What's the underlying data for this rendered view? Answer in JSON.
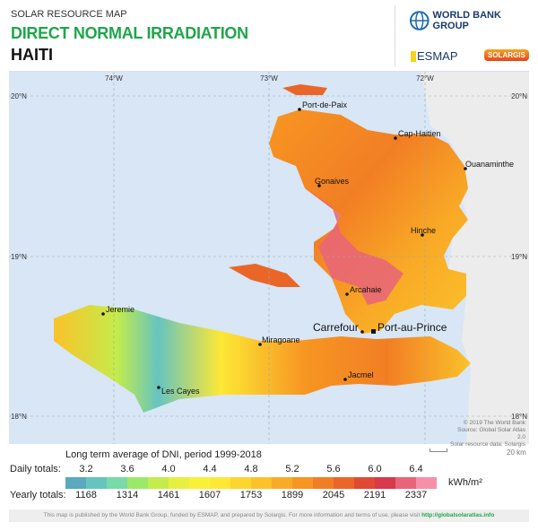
{
  "header": {
    "subtitle": "SOLAR RESOURCE MAP",
    "title": "DIRECT NORMAL IRRADIATION",
    "country": "HAITI"
  },
  "logos": {
    "wbg": "WORLD BANK GROUP",
    "esmap": "ESMAP",
    "solargis": "SOLARGIS"
  },
  "map": {
    "lon_labels": [
      "74°W",
      "73°W",
      "72°W"
    ],
    "lat_labels": [
      "20°N",
      "19°N",
      "18°N"
    ],
    "cities": [
      "Port-de-Paix",
      "Cap-Haitien",
      "Ouanaminthe",
      "Gonaives",
      "Hinche",
      "Arcahaie",
      "Carrefour",
      "Port-au-Prince",
      "Jeremie",
      "Miragoane",
      "Les Cayes",
      "Jacmel"
    ],
    "credits": [
      "© 2019 The World Bank",
      "Source: Global Solar Atlas 2.0",
      "Solar resource data: Solargis"
    ],
    "scale": "20 km"
  },
  "legend": {
    "title": "Long term average of DNI, period 1999-2018",
    "daily_label": "Daily totals:",
    "yearly_label": "Yearly totals:",
    "daily": [
      "3.2",
      "3.6",
      "4.0",
      "4.4",
      "4.8",
      "5.2",
      "5.6",
      "6.0",
      "6.4"
    ],
    "yearly": [
      "1168",
      "1314",
      "1461",
      "1607",
      "1753",
      "1899",
      "2045",
      "2191",
      "2337"
    ],
    "unit": "kWh/m²",
    "colors": [
      "#5aa9be",
      "#66c4c0",
      "#78dba8",
      "#9ce86a",
      "#c4ec4a",
      "#e6f040",
      "#f8f138",
      "#fde835",
      "#fdd52e",
      "#fbc22a",
      "#f9aa26",
      "#f79622",
      "#f27e24",
      "#ea6628",
      "#e04a34",
      "#d63a4c",
      "#e8647a",
      "#f78fa8"
    ]
  },
  "footer": {
    "text": "This map is published by the World Bank Group, funded by ESMAP, and prepared by Solargis. For more information and terms of use, please visit ",
    "link": "http://globalsolaratlas.info"
  }
}
